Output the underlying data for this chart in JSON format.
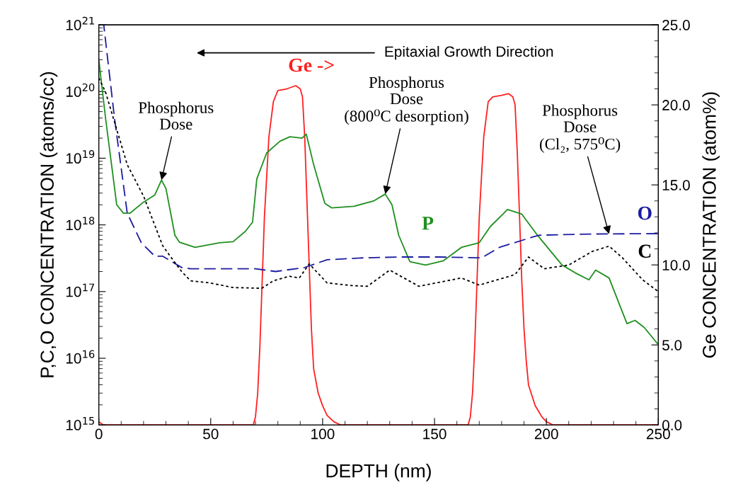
{
  "chart_data": {
    "type": "line",
    "xlabel": "DEPTH (nm)",
    "ylabel": "P,C,O CONCENTRATION (atoms/cc)",
    "y2label": "Ge CONCENTRATION (atom%)",
    "log": "y",
    "grid": false,
    "legend": false,
    "xlim": [
      0,
      250
    ],
    "xticks": [
      0,
      50,
      100,
      150,
      200,
      250
    ],
    "ylim": [
      1000000000000000.0,
      1e+21
    ],
    "yticks": [
      {
        "value": 1000000000000000.0,
        "label": "10$^{15}$"
      },
      {
        "value": 1e+16,
        "label": "10$^{16}$"
      },
      {
        "value": 1e+17,
        "label": "10$^{17}$"
      },
      {
        "value": 1e+18,
        "label": "10$^{18}$"
      },
      {
        "value": 1e+19,
        "label": "10$^{19}$"
      },
      {
        "value": 1e+20,
        "label": "10$^{20}$"
      },
      {
        "value": 1e+21,
        "label": "10$^{21}$"
      }
    ],
    "y2lim": [
      0,
      25
    ],
    "y2ticks": [
      {
        "value": 0,
        "label": "0.0"
      },
      {
        "value": 5,
        "label": "5.0"
      },
      {
        "value": 10,
        "label": "10.0"
      },
      {
        "value": 15,
        "label": "15.0"
      },
      {
        "value": 20,
        "label": "20.0"
      },
      {
        "value": 25,
        "label": "25.0"
      }
    ],
    "series": [
      {
        "name": "Ge ->",
        "color": "#ff2020",
        "axis": "y2",
        "line_style": "solid",
        "x": [
          0,
          2,
          69,
          70,
          71,
          72,
          73,
          74,
          76,
          78,
          80,
          84,
          86,
          88,
          90,
          91,
          92,
          93,
          94,
          95,
          96,
          98,
          100,
          102,
          105,
          108,
          165,
          166,
          167,
          168,
          169,
          170,
          172,
          174,
          176,
          180,
          183,
          185,
          186,
          187,
          188,
          189,
          190,
          191,
          192,
          195,
          198,
          200,
          203,
          250
        ],
        "values": [
          0.2,
          0,
          0,
          0.5,
          2,
          5,
          9,
          13,
          18,
          20.2,
          20.9,
          21.0,
          21.1,
          21.2,
          21.0,
          20.5,
          18,
          14,
          10,
          6,
          3.5,
          2,
          1.2,
          0.6,
          0.2,
          0,
          0,
          0.5,
          2,
          5,
          9,
          13,
          18,
          20.2,
          20.5,
          20.6,
          20.7,
          20.5,
          20,
          17,
          13,
          9,
          6,
          4,
          2.5,
          1.2,
          0.5,
          0.2,
          0,
          0
        ]
      },
      {
        "name": "P",
        "color": "#1f8f1f",
        "line_style": "solid",
        "x": [
          0,
          3,
          8,
          11,
          14,
          20,
          25,
          28,
          30,
          34,
          36,
          43,
          54,
          60,
          65.5,
          68.7,
          70.6,
          75,
          81,
          85.4,
          90.8,
          92.7,
          96,
          101,
          104,
          114,
          123,
          128,
          131,
          134,
          139,
          146,
          154,
          162,
          170,
          175,
          181,
          182.6,
          189,
          196,
          207,
          213,
          219,
          222,
          228,
          236,
          239.6,
          243.7,
          250
        ],
        "values": [
          3e+20,
          4e+19,
          2e+18,
          1.5e+18,
          1.5e+18,
          2.2e+18,
          2.8e+18,
          4.7e+18,
          3.5e+18,
          7e+17,
          5.5e+17,
          4.6e+17,
          5.4e+17,
          5.6e+17,
          8e+17,
          1.1e+18,
          4.9e+18,
          1.2e+19,
          1.8e+19,
          2.1e+19,
          2e+19,
          2.3e+19,
          8e+18,
          2.1e+18,
          1.8e+18,
          1.9e+18,
          2.3e+18,
          2.9e+18,
          2e+18,
          7e+17,
          2.8e+17,
          2.5e+17,
          2.9e+17,
          4.6e+17,
          5.4e+17,
          9.5e+17,
          1.5e+18,
          1.7e+18,
          1.45e+18,
          7e+17,
          2.5e+17,
          1.9e+17,
          1.5e+17,
          2.1e+17,
          1.6e+17,
          3.3e+16,
          3.7e+16,
          2.9e+16,
          1.6e+16
        ]
      },
      {
        "name": "O",
        "color": "#1c1ca0",
        "line_style": "dashed",
        "x": [
          0,
          2.2,
          7,
          12.7,
          19,
          25,
          28.5,
          37,
          41,
          55,
          70,
          79,
          92,
          102,
          118,
          135,
          152,
          171,
          179,
          194,
          197,
          220,
          250
        ],
        "values": [
          1e+21,
          1e+21,
          4e+19,
          1.5e+18,
          5.4e+17,
          3.4e+17,
          3.4e+17,
          2.3e+17,
          2.2e+17,
          2.2e+17,
          2.2e+17,
          2e+17,
          2.3e+17,
          3e+17,
          3.2e+17,
          3.3e+17,
          3.3e+17,
          3.2e+17,
          4.6e+17,
          6.6e+17,
          7e+17,
          7.3e+17,
          7.4e+17
        ]
      },
      {
        "name": "C",
        "color": "#000000",
        "line_style": "dotted",
        "x": [
          0,
          3,
          7,
          12.7,
          20,
          28.5,
          31.6,
          37,
          41,
          49.6,
          60,
          72.8,
          78,
          85,
          89.6,
          94,
          102,
          113,
          120,
          130,
          143,
          162,
          170,
          186,
          192,
          199,
          210,
          220.5,
          228,
          234,
          243,
          250
        ],
        "values": [
          1.6e+20,
          9.8e+19,
          3.5e+19,
          8e+18,
          2.7e+18,
          4.9e+17,
          3.5e+17,
          2e+17,
          1.45e+17,
          1.35e+17,
          1.15e+17,
          1.12e+17,
          1.45e+17,
          1.7e+17,
          1.6e+17,
          2.6e+17,
          1.35e+17,
          1.23e+17,
          1.2e+17,
          2.1e+17,
          1.2e+17,
          1.6e+17,
          1.25e+17,
          1.8e+17,
          3.3e+17,
          2.2e+17,
          2.5e+17,
          4e+17,
          4.8e+17,
          3.2e+17,
          1.5e+17,
          1e+17
        ]
      }
    ],
    "annotations": [
      "Epitaxial Growth Direction",
      {
        "text": "Phosphorus\nDose",
        "x": 28,
        "y": 4.7e+18
      },
      {
        "text": "Phosphorus\nDose\n(800⁰C desorption)",
        "x": 128,
        "y": 2.9e+18
      },
      {
        "text": "Phosphorus\nDose\n(Cl₂, 575⁰C)",
        "x": 228,
        "y": 7.3e+17
      }
    ]
  }
}
